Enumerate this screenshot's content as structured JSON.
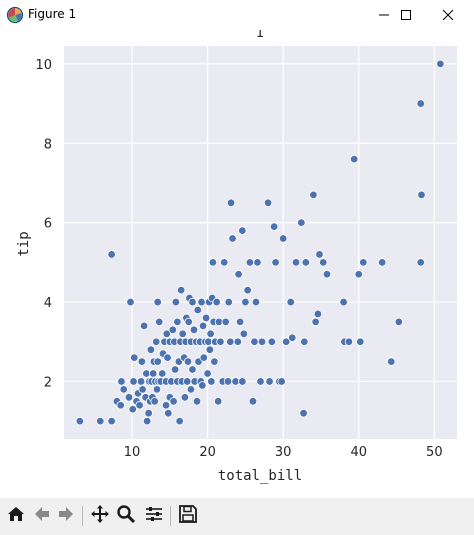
{
  "window": {
    "title": "Figure 1"
  },
  "icons": {
    "app": "matplotlib-figure-icon",
    "minimize": "minimize-icon",
    "maximize": "maximize-icon",
    "close": "close-icon"
  },
  "toolbar": {
    "buttons": [
      "home-icon",
      "back-arrow-icon",
      "forward-arrow-icon",
      "pan-icon",
      "zoom-icon",
      "configure-subplots-icon",
      "save-icon"
    ]
  },
  "colors": {
    "axes_bg": "#eaeaf2",
    "grid": "#ffffff",
    "marker": "#4c72b0",
    "marker_edge": "#ffffff"
  },
  "chart_data": {
    "type": "scatter",
    "title": "1",
    "xlabel": "total_bill",
    "ylabel": "tip",
    "xlim": [
      1.0,
      53.0
    ],
    "ylim": [
      0.55,
      10.45
    ],
    "xticks": [
      10,
      20,
      30,
      40,
      50
    ],
    "yticks": [
      2,
      4,
      6,
      8,
      10
    ],
    "grid": true,
    "points": [
      [
        3.1,
        1.0
      ],
      [
        5.8,
        1.0
      ],
      [
        7.3,
        1.0
      ],
      [
        7.3,
        5.2
      ],
      [
        8.0,
        1.5
      ],
      [
        8.5,
        1.4
      ],
      [
        8.9,
        1.8
      ],
      [
        8.6,
        2.0
      ],
      [
        9.6,
        1.6
      ],
      [
        9.8,
        4.0
      ],
      [
        10.1,
        1.3
      ],
      [
        10.3,
        2.6
      ],
      [
        10.2,
        2.0
      ],
      [
        10.6,
        1.5
      ],
      [
        10.8,
        1.7
      ],
      [
        11.0,
        1.4
      ],
      [
        11.2,
        2.0
      ],
      [
        11.3,
        2.5
      ],
      [
        11.4,
        1.8
      ],
      [
        11.6,
        3.4
      ],
      [
        11.8,
        1.6
      ],
      [
        11.9,
        2.2
      ],
      [
        12.0,
        1.0
      ],
      [
        12.2,
        1.2
      ],
      [
        12.3,
        2.0
      ],
      [
        12.4,
        1.5
      ],
      [
        12.5,
        2.8
      ],
      [
        12.6,
        2.0
      ],
      [
        12.7,
        1.6
      ],
      [
        12.8,
        2.2
      ],
      [
        12.9,
        2.5
      ],
      [
        13.0,
        1.5
      ],
      [
        13.1,
        2.0
      ],
      [
        13.2,
        3.0
      ],
      [
        13.3,
        1.8
      ],
      [
        13.4,
        4.0
      ],
      [
        13.4,
        2.5
      ],
      [
        13.5,
        2.0
      ],
      [
        13.6,
        3.5
      ],
      [
        13.8,
        2.0
      ],
      [
        14.0,
        2.2
      ],
      [
        14.1,
        2.7
      ],
      [
        14.3,
        3.0
      ],
      [
        14.5,
        1.4
      ],
      [
        14.5,
        2.0
      ],
      [
        14.6,
        3.2
      ],
      [
        14.7,
        2.6
      ],
      [
        14.8,
        1.2
      ],
      [
        15.0,
        1.6
      ],
      [
        15.0,
        3.0
      ],
      [
        15.2,
        2.0
      ],
      [
        15.4,
        3.3
      ],
      [
        15.5,
        1.5
      ],
      [
        15.6,
        3.0
      ],
      [
        15.7,
        2.3
      ],
      [
        15.8,
        4.0
      ],
      [
        16.0,
        2.0
      ],
      [
        16.0,
        3.5
      ],
      [
        16.2,
        2.5
      ],
      [
        16.3,
        1.0
      ],
      [
        16.4,
        3.0
      ],
      [
        16.5,
        4.3
      ],
      [
        16.6,
        2.0
      ],
      [
        16.7,
        3.2
      ],
      [
        16.9,
        2.6
      ],
      [
        17.0,
        1.6
      ],
      [
        17.1,
        3.0
      ],
      [
        17.2,
        3.6
      ],
      [
        17.3,
        2.0
      ],
      [
        17.4,
        2.5
      ],
      [
        17.5,
        3.5
      ],
      [
        17.6,
        4.1
      ],
      [
        17.8,
        1.8
      ],
      [
        17.8,
        3.0
      ],
      [
        18.0,
        2.3
      ],
      [
        18.0,
        4.0
      ],
      [
        18.2,
        3.3
      ],
      [
        18.3,
        2.0
      ],
      [
        18.5,
        3.0
      ],
      [
        18.6,
        1.5
      ],
      [
        18.7,
        3.8
      ],
      [
        18.8,
        2.5
      ],
      [
        19.0,
        3.0
      ],
      [
        19.1,
        2.0
      ],
      [
        19.2,
        4.0
      ],
      [
        19.3,
        1.9
      ],
      [
        19.4,
        3.4
      ],
      [
        19.5,
        2.6
      ],
      [
        19.7,
        3.0
      ],
      [
        19.8,
        3.6
      ],
      [
        20.0,
        2.2
      ],
      [
        20.1,
        3.0
      ],
      [
        20.2,
        4.0
      ],
      [
        20.3,
        2.8
      ],
      [
        20.4,
        3.2
      ],
      [
        20.5,
        2.0
      ],
      [
        20.6,
        4.1
      ],
      [
        20.7,
        5.0
      ],
      [
        20.8,
        3.5
      ],
      [
        20.9,
        2.5
      ],
      [
        21.0,
        3.0
      ],
      [
        21.2,
        4.0
      ],
      [
        21.4,
        1.5
      ],
      [
        21.5,
        3.5
      ],
      [
        21.7,
        3.0
      ],
      [
        22.0,
        2.0
      ],
      [
        22.2,
        5.0
      ],
      [
        22.4,
        3.5
      ],
      [
        22.7,
        2.0
      ],
      [
        22.8,
        4.0
      ],
      [
        23.0,
        3.0
      ],
      [
        23.1,
        6.5
      ],
      [
        23.3,
        5.6
      ],
      [
        23.7,
        2.0
      ],
      [
        24.0,
        3.0
      ],
      [
        24.1,
        4.7
      ],
      [
        24.3,
        3.5
      ],
      [
        24.6,
        5.8
      ],
      [
        24.6,
        2.0
      ],
      [
        24.8,
        3.2
      ],
      [
        25.0,
        4.0
      ],
      [
        25.3,
        4.3
      ],
      [
        25.6,
        5.0
      ],
      [
        26.0,
        1.5
      ],
      [
        26.2,
        3.0
      ],
      [
        26.4,
        4.0
      ],
      [
        26.6,
        5.0
      ],
      [
        27.0,
        2.0
      ],
      [
        27.2,
        3.0
      ],
      [
        28.0,
        6.5
      ],
      [
        28.2,
        2.0
      ],
      [
        28.5,
        3.0
      ],
      [
        28.8,
        5.9
      ],
      [
        29.0,
        5.0
      ],
      [
        29.5,
        2.0
      ],
      [
        29.8,
        2.0
      ],
      [
        30.0,
        5.6
      ],
      [
        30.4,
        3.0
      ],
      [
        31.0,
        4.0
      ],
      [
        31.2,
        3.1
      ],
      [
        31.7,
        5.0
      ],
      [
        32.4,
        6.0
      ],
      [
        32.7,
        1.2
      ],
      [
        32.8,
        3.0
      ],
      [
        33.0,
        5.0
      ],
      [
        34.0,
        6.7
      ],
      [
        34.3,
        3.5
      ],
      [
        34.6,
        3.7
      ],
      [
        34.8,
        5.2
      ],
      [
        35.3,
        5.0
      ],
      [
        35.8,
        4.7
      ],
      [
        38.0,
        4.0
      ],
      [
        38.1,
        3.0
      ],
      [
        38.7,
        3.0
      ],
      [
        39.4,
        7.6
      ],
      [
        40.0,
        4.7
      ],
      [
        40.2,
        3.0
      ],
      [
        40.6,
        5.0
      ],
      [
        43.1,
        5.0
      ],
      [
        44.3,
        2.5
      ],
      [
        45.3,
        3.5
      ],
      [
        48.2,
        5.0
      ],
      [
        48.3,
        6.7
      ],
      [
        48.2,
        9.0
      ],
      [
        50.8,
        10.0
      ]
    ]
  }
}
